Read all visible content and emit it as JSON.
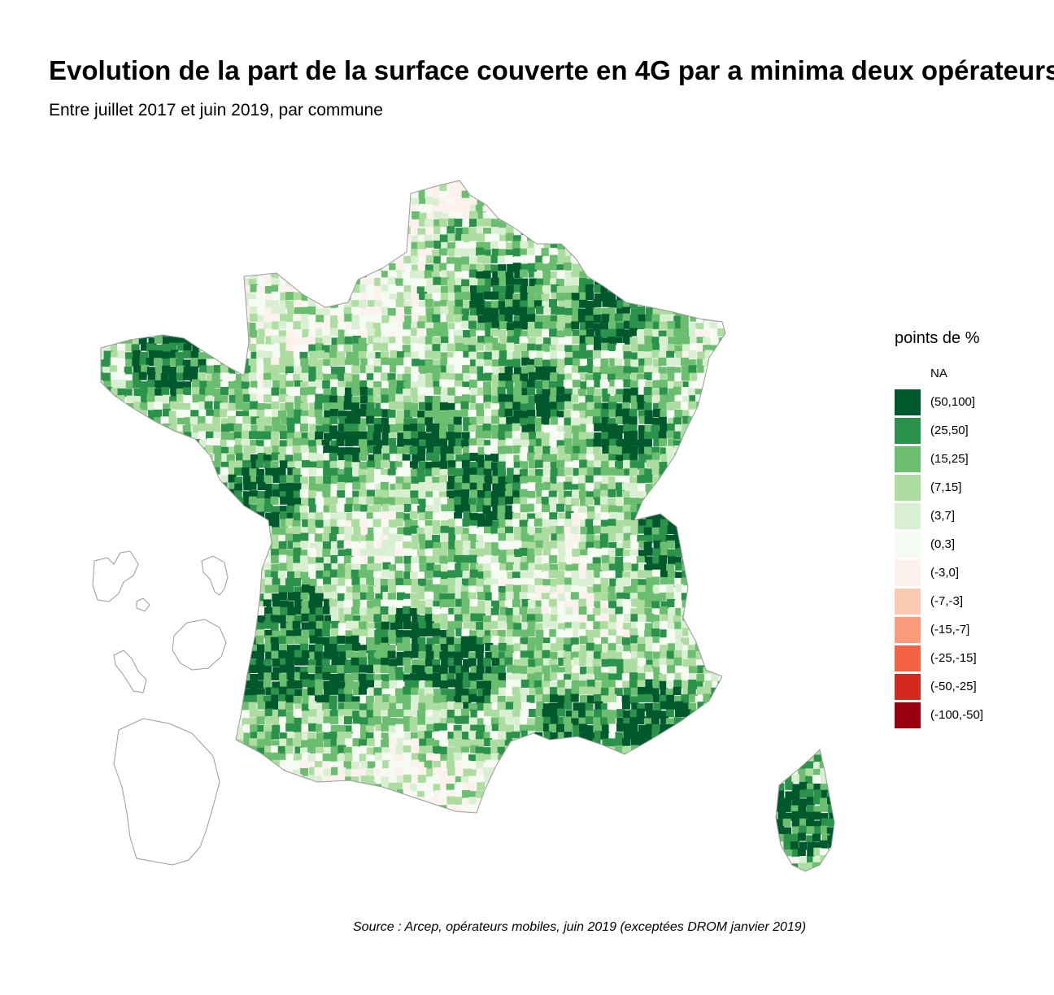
{
  "title": "Evolution de la part de la surface couverte en 4G par a minima deux opérateurs",
  "subtitle": "Entre juillet 2017 et juin 2019, par commune",
  "caption": "Source : Arcep, opérateurs mobiles, juin 2019 (exceptées DROM janvier 2019)",
  "legend": {
    "title": "points de %",
    "items": [
      {
        "label": "NA",
        "color": "#ffffff"
      },
      {
        "label": "(50,100]",
        "color": "#00592c"
      },
      {
        "label": "(25,50]",
        "color": "#2a924a"
      },
      {
        "label": "(15,25]",
        "color": "#6bbd6f"
      },
      {
        "label": "(7,15]",
        "color": "#acdc9f"
      },
      {
        "label": "(3,7]",
        "color": "#d9efd1"
      },
      {
        "label": "(0,3]",
        "color": "#f5fbf2"
      },
      {
        "label": "(-3,0]",
        "color": "#fdf1ee"
      },
      {
        "label": "(-7,-3]",
        "color": "#fcc9b3"
      },
      {
        "label": "(-15,-7]",
        "color": "#fb9b7c"
      },
      {
        "label": "(-25,-15]",
        "color": "#f46245"
      },
      {
        "label": "(-50,-25]",
        "color": "#d5281f"
      },
      {
        "label": "(-100,-50]",
        "color": "#9b0011"
      }
    ]
  }
}
